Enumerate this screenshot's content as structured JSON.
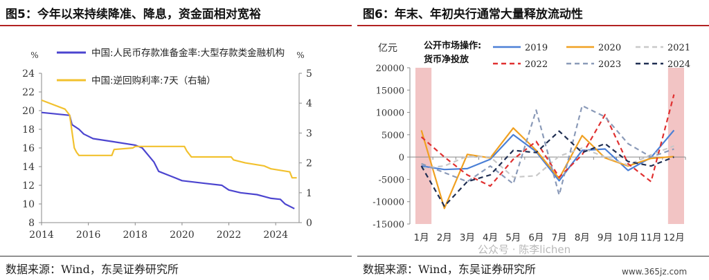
{
  "left": {
    "title": "图5：今年以来持续降准、降息，资金面相对宽裕",
    "source": "数据来源：Wind，东吴证券研究所"
  },
  "right": {
    "title": "图6：年末、年初央行通常大量释放流动性",
    "source": "数据来源：Wind，东吴证券研究所"
  },
  "watermark": "公众号 · 陈李lichen",
  "site": "www.365jz.com",
  "colors": {
    "rrr": "#4b44cf",
    "repo": "#f2c12e",
    "band": "#f2c4c4",
    "rule": "#b22222"
  },
  "chart_data": [
    {
      "type": "line",
      "left_unit": "%",
      "right_unit": "%",
      "x_ticks": [
        "2014",
        "2016",
        "2018",
        "2020",
        "2022",
        "2024"
      ],
      "x_range": [
        2014,
        2025
      ],
      "y_left": {
        "range": [
          8,
          24
        ],
        "ticks": [
          "8",
          "10",
          "12",
          "14",
          "16",
          "18",
          "20",
          "22",
          "24"
        ]
      },
      "y_right": {
        "range": [
          0,
          5
        ],
        "ticks": [
          "0",
          "1",
          "2",
          "3",
          "4",
          "5"
        ]
      },
      "legend_position": "top",
      "series": [
        {
          "name": "中国:人民币存款准备金率:大型存款类金融机构",
          "axis": "left",
          "color": "#4b44cf",
          "points": [
            [
              2014.0,
              19.8
            ],
            [
              2015.2,
              19.5
            ],
            [
              2015.3,
              18.5
            ],
            [
              2015.6,
              18.0
            ],
            [
              2015.8,
              17.5
            ],
            [
              2016.2,
              17.0
            ],
            [
              2017.0,
              16.7
            ],
            [
              2018.0,
              16.3
            ],
            [
              2018.3,
              16.0
            ],
            [
              2018.8,
              14.5
            ],
            [
              2019.0,
              13.5
            ],
            [
              2019.5,
              13.0
            ],
            [
              2020.0,
              12.5
            ],
            [
              2021.0,
              12.2
            ],
            [
              2021.7,
              12.0
            ],
            [
              2022.0,
              11.5
            ],
            [
              2022.5,
              11.2
            ],
            [
              2023.2,
              11.0
            ],
            [
              2023.8,
              10.6
            ],
            [
              2024.2,
              10.5
            ],
            [
              2024.4,
              10.0
            ],
            [
              2024.8,
              9.5
            ]
          ]
        },
        {
          "name": "中国:逆回购利率:7天（右轴）",
          "axis": "right",
          "color": "#f2c12e",
          "points": [
            [
              2014.0,
              4.1
            ],
            [
              2015.0,
              3.8
            ],
            [
              2015.2,
              3.6
            ],
            [
              2015.4,
              2.5
            ],
            [
              2015.5,
              2.35
            ],
            [
              2015.6,
              2.25
            ],
            [
              2017.0,
              2.25
            ],
            [
              2017.1,
              2.45
            ],
            [
              2017.9,
              2.5
            ],
            [
              2018.0,
              2.55
            ],
            [
              2020.1,
              2.55
            ],
            [
              2020.2,
              2.4
            ],
            [
              2020.4,
              2.2
            ],
            [
              2022.1,
              2.2
            ],
            [
              2022.2,
              2.1
            ],
            [
              2022.7,
              2.0
            ],
            [
              2023.5,
              1.9
            ],
            [
              2023.8,
              1.8
            ],
            [
              2024.6,
              1.7
            ],
            [
              2024.7,
              1.5
            ],
            [
              2024.9,
              1.5
            ]
          ]
        }
      ]
    },
    {
      "type": "line",
      "y_unit": "亿元",
      "y_range": [
        -15000,
        20000
      ],
      "y_ticks": [
        "20000",
        "15000",
        "10000",
        "5000",
        "0",
        "-5000",
        "-10000",
        "-15000"
      ],
      "categories": [
        "1月",
        "2月",
        "3月",
        "4月",
        "5月",
        "6月",
        "7月",
        "8月",
        "9月",
        "10月",
        "11月",
        "12月"
      ],
      "legend_title": [
        "公开市场操作:",
        "货币净投放"
      ],
      "legend_position": "top",
      "highlight_months": [
        "1月",
        "12月"
      ],
      "series": [
        {
          "name": "2019",
          "color": "#4a7fd6",
          "dash": "solid",
          "values": [
            -2000,
            -2800,
            -2600,
            -500,
            5000,
            1200,
            -5300,
            1500,
            1800,
            -3000,
            -100,
            6000
          ]
        },
        {
          "name": "2020",
          "color": "#f0a020",
          "dash": "solid",
          "values": [
            6000,
            -11500,
            600,
            -200,
            6500,
            1500,
            -4800,
            4800,
            -200,
            -2000,
            -300,
            100
          ]
        },
        {
          "name": "2021",
          "color": "#c8c8c8",
          "dash": "dash",
          "values": [
            -2500,
            -2000,
            200,
            0,
            -4500,
            -4200,
            200,
            2000,
            0,
            -1800,
            500,
            2500
          ]
        },
        {
          "name": "2022",
          "color": "#e03030",
          "dash": "dash",
          "values": [
            4500,
            0,
            -4000,
            -6500,
            -500,
            3500,
            -4500,
            500,
            9500,
            -1500,
            -5500,
            14000
          ]
        },
        {
          "name": "2023",
          "color": "#8a9ab8",
          "dash": "dash",
          "values": [
            -1500,
            -3500,
            -5500,
            -2000,
            -6000,
            10500,
            -8500,
            11500,
            9000,
            3000,
            0,
            1800
          ]
        },
        {
          "name": "2024",
          "color": "#1f2e52",
          "dash": "dash",
          "values": [
            -2000,
            -11000,
            -5500,
            -4000,
            1500,
            1000,
            5800,
            1000,
            3000,
            -1000,
            -2000,
            0
          ]
        }
      ]
    }
  ]
}
